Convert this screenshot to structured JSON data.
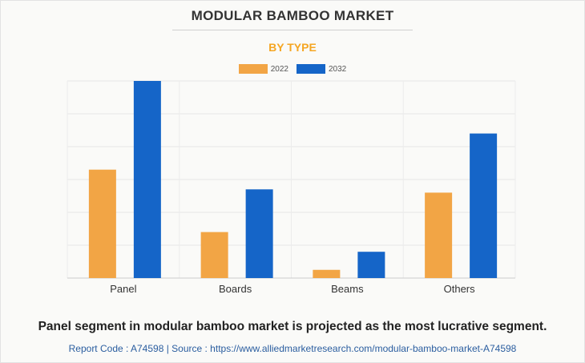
{
  "header": {
    "title": "MODULAR BAMBOO MARKET",
    "subtitle": "BY TYPE",
    "subtitle_color": "#f5a623"
  },
  "legend": [
    {
      "label": "2022",
      "color": "#f2a545"
    },
    {
      "label": "2032",
      "color": "#1565c8"
    }
  ],
  "chart_data": {
    "type": "bar",
    "categories": [
      "Panel",
      "Boards",
      "Beams",
      "Others"
    ],
    "series": [
      {
        "name": "2022",
        "color": "#f2a545",
        "values": [
          3.3,
          1.4,
          0.25,
          2.6
        ]
      },
      {
        "name": "2032",
        "color": "#1565c8",
        "values": [
          6.0,
          2.7,
          0.8,
          4.4
        ]
      }
    ],
    "ylim": [
      0,
      6.0
    ],
    "gridlines": 6,
    "grid": true,
    "y_tick_labels": false,
    "legend_position": "top-center"
  },
  "footer": {
    "headline": "Panel segment in modular bamboo market is projected as the most lucrative segment.",
    "source": "Report Code : A74598  |  Source : https://www.alliedmarketresearch.com/modular-bamboo-market-A74598"
  }
}
